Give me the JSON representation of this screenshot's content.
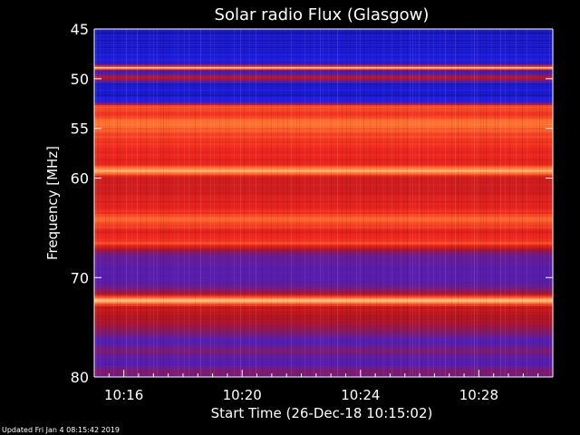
{
  "chart_data": {
    "type": "heatmap",
    "title": "Solar radio Flux (Glasgow)",
    "xlabel": "Start Time (26-Dec-18 10:15:02)",
    "ylabel": "Frequency [MHz]",
    "x_range_minutes": [
      0,
      15.5
    ],
    "x_ticks": [
      {
        "label": "10:16",
        "minute": 1
      },
      {
        "label": "10:20",
        "minute": 5
      },
      {
        "label": "10:24",
        "minute": 9
      },
      {
        "label": "10:28",
        "minute": 13
      }
    ],
    "ylim": [
      45,
      80
    ],
    "y_axis_inverted": true,
    "y_ticks": [
      45,
      50,
      55,
      60,
      70,
      80
    ],
    "colormap": [
      "#000000",
      "#1e1ee6",
      "#5a1eaa",
      "#b4141e",
      "#f0281e",
      "#ff7832",
      "#ffe6aa"
    ],
    "intensity_profile": [
      {
        "freq": 45.0,
        "level": 0.15
      },
      {
        "freq": 46.0,
        "level": 0.14
      },
      {
        "freq": 47.5,
        "level": 0.16
      },
      {
        "freq": 48.5,
        "level": 0.18
      },
      {
        "freq": 48.9,
        "level": 0.97
      },
      {
        "freq": 49.3,
        "level": 0.18
      },
      {
        "freq": 49.9,
        "level": 0.55
      },
      {
        "freq": 50.5,
        "level": 0.16
      },
      {
        "freq": 51.5,
        "level": 0.14
      },
      {
        "freq": 52.3,
        "level": 0.2
      },
      {
        "freq": 52.8,
        "level": 0.78
      },
      {
        "freq": 53.5,
        "level": 0.7
      },
      {
        "freq": 54.5,
        "level": 0.82
      },
      {
        "freq": 55.5,
        "level": 0.74
      },
      {
        "freq": 57.0,
        "level": 0.66
      },
      {
        "freq": 58.5,
        "level": 0.62
      },
      {
        "freq": 59.3,
        "level": 0.95
      },
      {
        "freq": 60.0,
        "level": 0.55
      },
      {
        "freq": 61.0,
        "level": 0.58
      },
      {
        "freq": 62.5,
        "level": 0.62
      },
      {
        "freq": 63.5,
        "level": 0.68
      },
      {
        "freq": 64.2,
        "level": 0.8
      },
      {
        "freq": 65.5,
        "level": 0.62
      },
      {
        "freq": 66.5,
        "level": 0.74
      },
      {
        "freq": 67.5,
        "level": 0.38
      },
      {
        "freq": 69.0,
        "level": 0.32
      },
      {
        "freq": 70.5,
        "level": 0.33
      },
      {
        "freq": 71.5,
        "level": 0.42
      },
      {
        "freq": 72.3,
        "level": 0.97
      },
      {
        "freq": 73.0,
        "level": 0.55
      },
      {
        "freq": 74.0,
        "level": 0.5
      },
      {
        "freq": 75.0,
        "level": 0.45
      },
      {
        "freq": 76.5,
        "level": 0.32
      },
      {
        "freq": 77.5,
        "level": 0.4
      },
      {
        "freq": 78.5,
        "level": 0.3
      },
      {
        "freq": 79.5,
        "level": 0.42
      },
      {
        "freq": 80.0,
        "level": 0.35
      }
    ]
  },
  "footer": {
    "updated": "Updated Fri Jan  4 08:15:42 2019"
  }
}
